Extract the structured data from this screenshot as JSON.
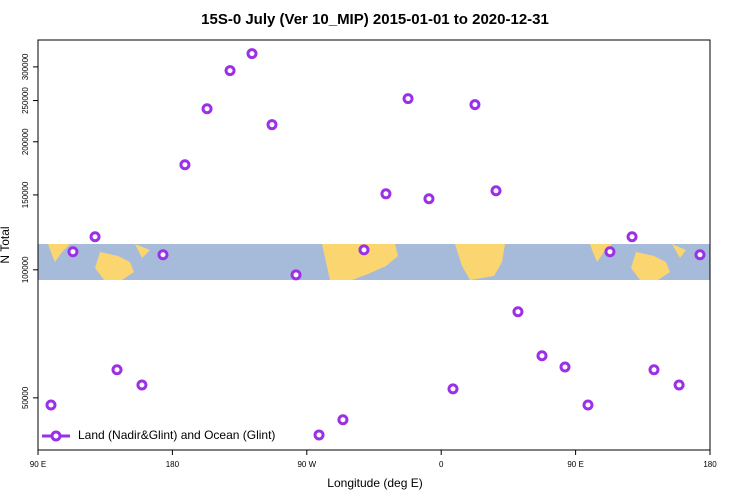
{
  "chart_data": {
    "type": "scatter",
    "title": "15S-0 July (Ver 10_MIP)   2015-01-01 to 2020-12-31",
    "x_label": "Longitude (deg E)",
    "y_label": "N Total",
    "ylog": true,
    "xlim": [
      90,
      540
    ],
    "ylim": [
      37700,
      347000
    ],
    "xticks": [
      {
        "value": 90,
        "label": "90 E"
      },
      180,
      {
        "value": 270,
        "label": "90 W"
      },
      {
        "value": 360,
        "label": "0"
      },
      {
        "value": 450,
        "label": "90 E"
      },
      {
        "value": 540,
        "label": "180"
      }
    ],
    "yticks": [
      50000,
      100000,
      150000,
      200000,
      250000,
      300000
    ],
    "legend": "bottom-left",
    "series": [
      {
        "name": "Land (Nadir&Glint) and Ocean (Glint)",
        "color": "#9b30e6",
        "x": [
          98.7,
          113.4,
          128.2,
          142.9,
          159.6,
          173.7,
          188.4,
          203.2,
          218.6,
          233.3,
          246.7,
          262.8,
          278.2,
          294.2,
          308.3,
          323.0,
          337.8,
          351.8,
          367.9,
          382.6,
          396.7,
          411.4,
          427.5,
          442.9,
          458.3,
          473.0,
          487.8,
          502.5,
          519.3,
          533.3
        ],
        "values": [
          48100,
          110300,
          119600,
          58200,
          53600,
          108500,
          176600,
          239200,
          294000,
          322300,
          219400,
          97300,
          40900,
          44400,
          111400,
          150900,
          252600,
          146900,
          52500,
          244500,
          153400,
          79700,
          62800,
          59100,
          48100,
          110300,
          119600,
          58200,
          53600,
          108500
        ]
      }
    ]
  }
}
